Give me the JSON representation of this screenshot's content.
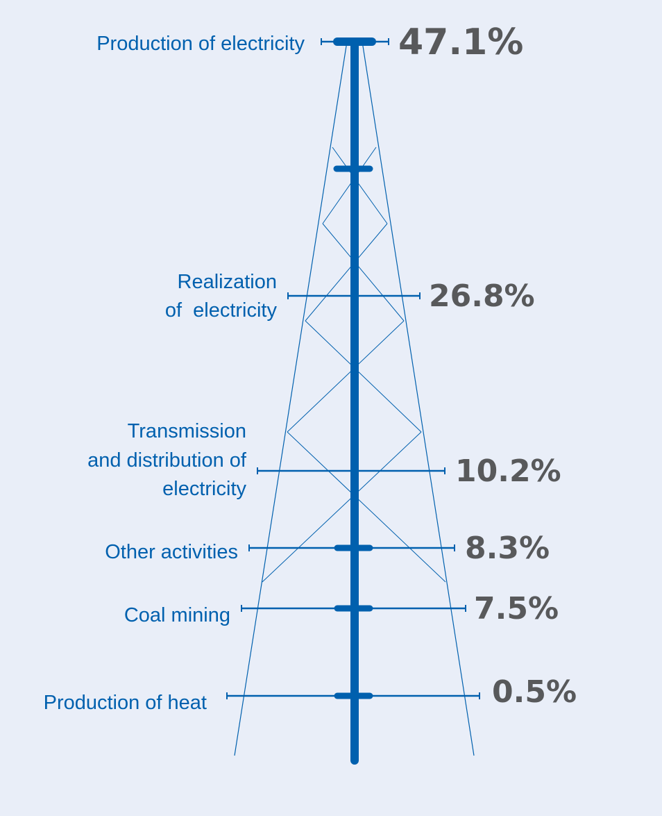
{
  "chart_data": {
    "type": "infographic-bar",
    "categories": [
      "Production of electricity",
      "Realization\nof  electricity",
      "Transmission\nand distribution of\nelectricity",
      "Other activities",
      "Coal mining",
      "Production of heat"
    ],
    "values": [
      47.1,
      26.8,
      10.2,
      8.3,
      7.5,
      0.5
    ],
    "value_labels": [
      "47.1%",
      "26.8%",
      "10.2%",
      "8.3%",
      "7.5%",
      "0.5%"
    ],
    "unit": "%"
  },
  "colors": {
    "background": "#e9eef8",
    "accent": "#0060ae",
    "value_text": "#58595b"
  }
}
